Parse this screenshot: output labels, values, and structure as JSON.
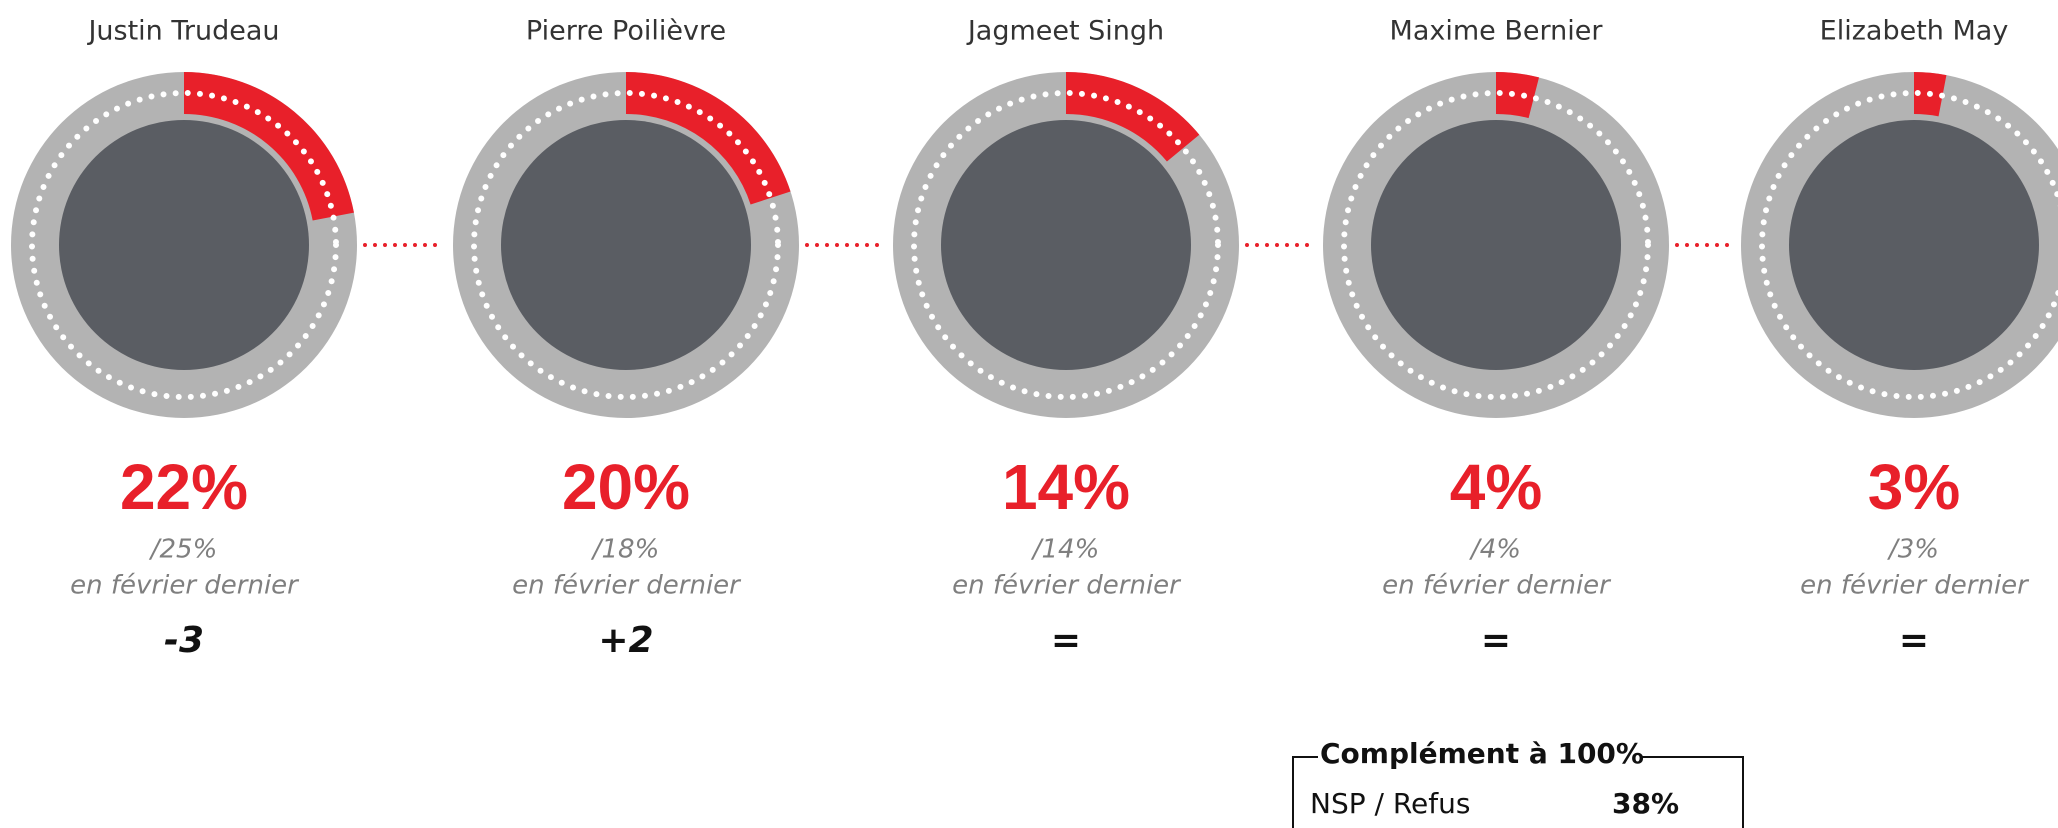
{
  "chart_data": {
    "type": "radial",
    "categories": [
      "Justin Trudeau",
      "Pierre Poilièvre",
      "Jagmeet Singh",
      "Maxime Bernier",
      "Elizabeth May"
    ],
    "values": [
      22,
      20,
      14,
      4,
      3
    ],
    "value_labels": [
      "22%",
      "20%",
      "14%",
      "4%",
      "3%"
    ],
    "previous_labels": [
      "/25%",
      "/18%",
      "/14%",
      "/4%",
      "/3%"
    ],
    "previous_note": "en février dernier",
    "changes": [
      "-3",
      "+2",
      "=",
      "=",
      "="
    ],
    "ylim": [
      0,
      100
    ],
    "color": "#e8202a",
    "complement": {
      "title": "Complément à 100%",
      "label": "NSP / Refus",
      "value": "38%"
    }
  }
}
